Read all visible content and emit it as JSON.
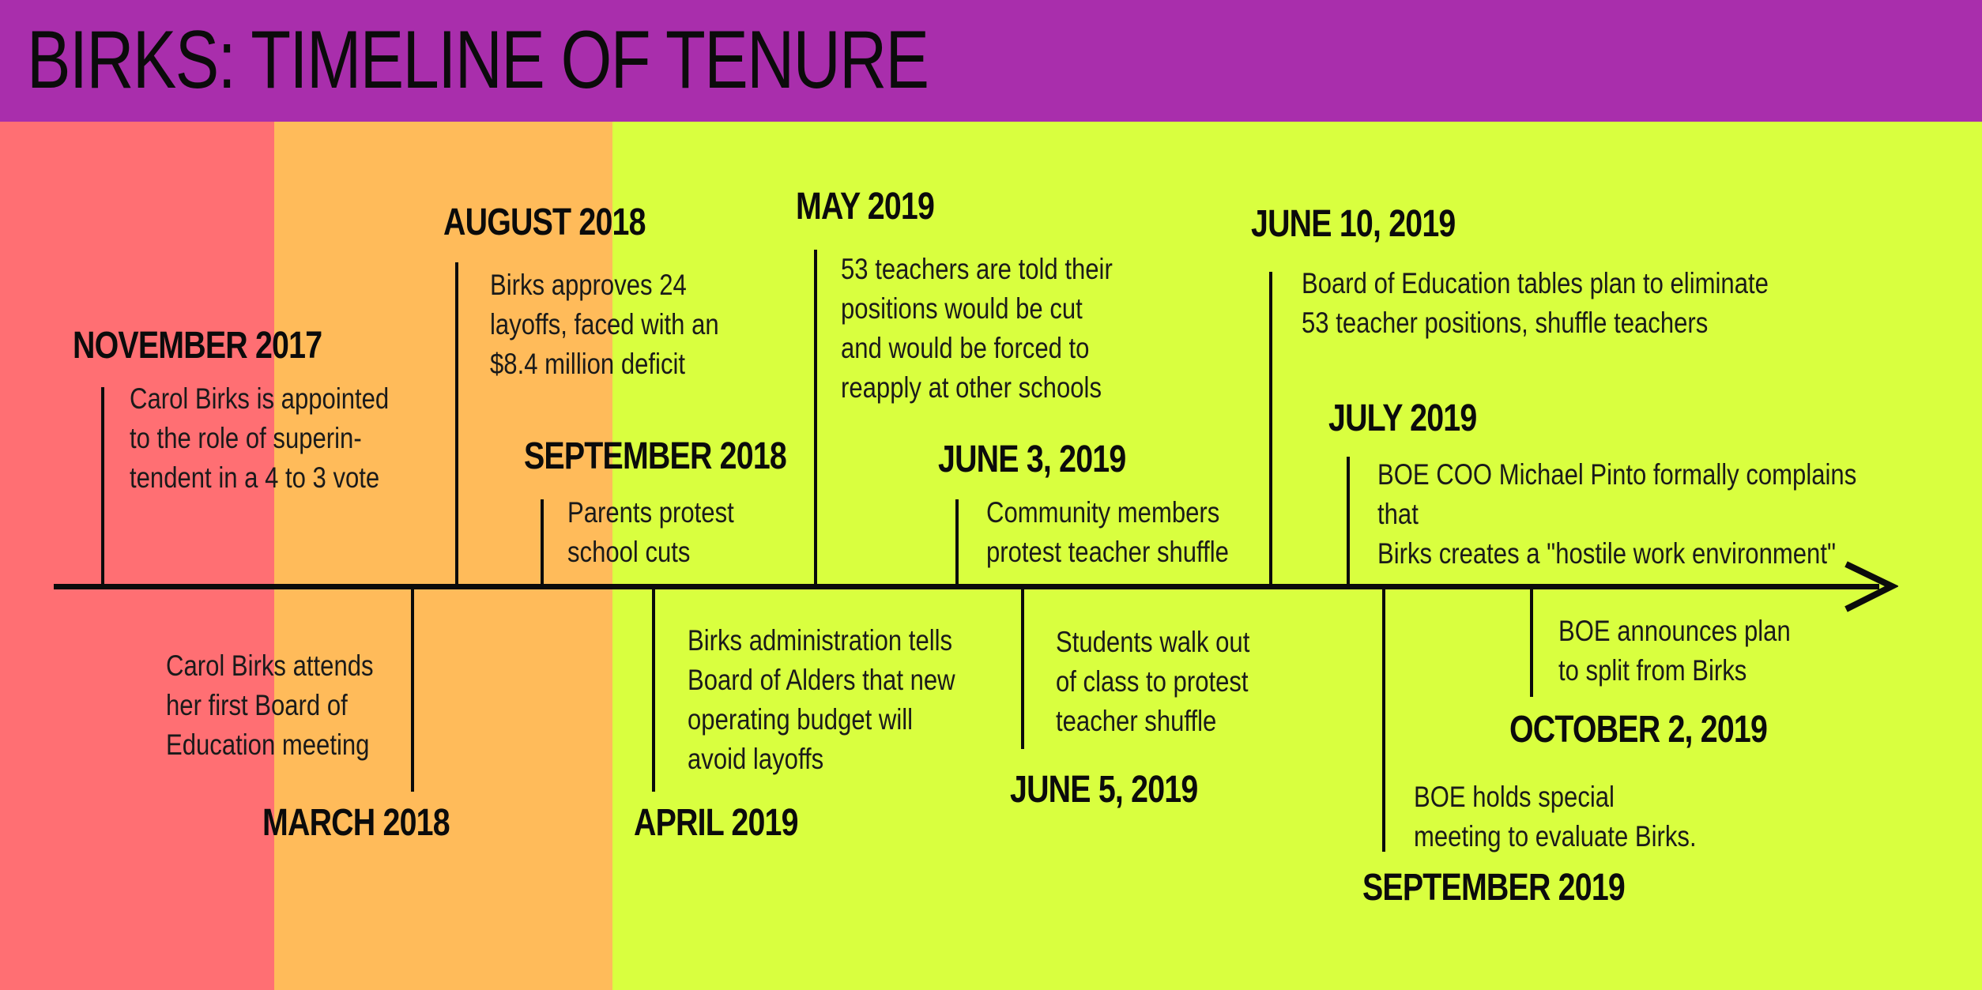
{
  "title": "BIRKS: TIMELINE OF TENURE",
  "colors": {
    "header": "#a92eac",
    "zone_red": "#ff6f73",
    "zone_orange": "#ffbb5a",
    "zone_green": "#d9ff3f",
    "line": "#0b0b0b"
  },
  "events": [
    {
      "date": "NOVEMBER 2017",
      "text": "Carol Birks is appointed\nto the role of superin-\ntendent in a 4 to 3 vote"
    },
    {
      "date": "MARCH 2018",
      "text": "Carol Birks attends\nher first Board of\nEducation meeting"
    },
    {
      "date": "AUGUST 2018",
      "text": "Birks approves 24\nlayoffs, faced with an\n$8.4 million deficit"
    },
    {
      "date": "SEPTEMBER 2018",
      "text": "Parents protest\nschool cuts"
    },
    {
      "date": "APRIL 2019",
      "text": "Birks administration tells\nBoard of Alders that new\noperating budget will\navoid layoffs"
    },
    {
      "date": "MAY 2019",
      "text": "53 teachers are told their\npositions would be cut\nand would be forced to\nreapply at other schools"
    },
    {
      "date": "JUNE 3, 2019",
      "text": "Community members\nprotest teacher shuffle"
    },
    {
      "date": "JUNE 5, 2019",
      "text": "Students walk out\nof class to protest\nteacher shuffle"
    },
    {
      "date": "JUNE 10, 2019",
      "text": "Board of Education tables plan to eliminate\n53 teacher positions, shuffle teachers"
    },
    {
      "date": "JULY 2019",
      "text": "BOE COO Michael Pinto formally complains that\nBirks creates a \"hostile work environment\""
    },
    {
      "date": "SEPTEMBER 2019",
      "text": "BOE holds special\nmeeting to evaluate Birks."
    },
    {
      "date": "OCTOBER 2, 2019",
      "text": "BOE announces plan\nto split from Birks"
    }
  ]
}
